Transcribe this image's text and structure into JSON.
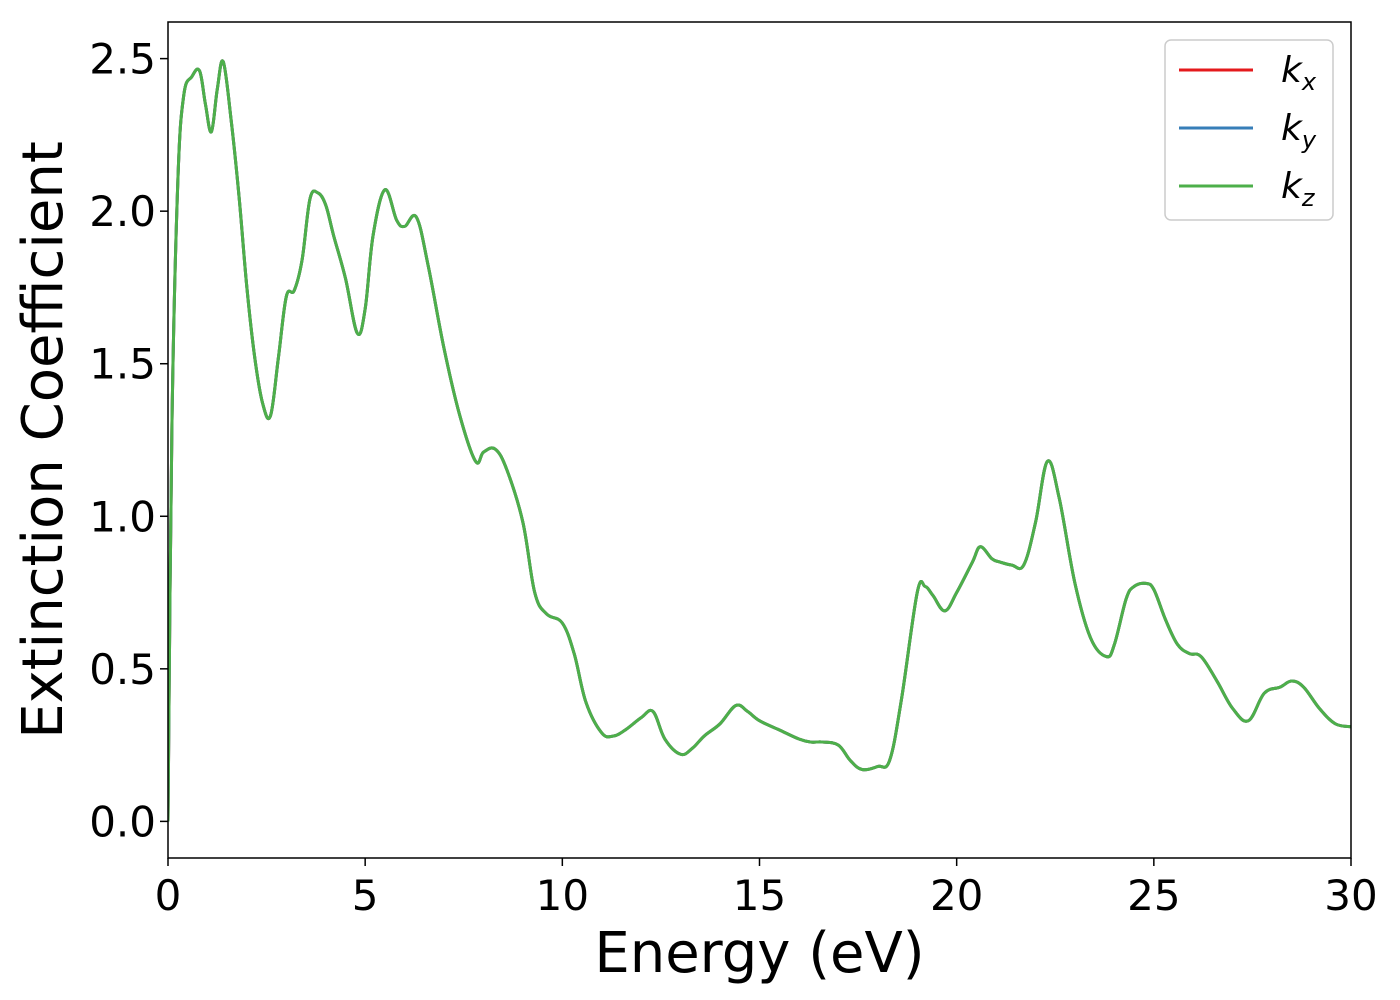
{
  "chart_data": {
    "type": "line",
    "title": "",
    "xlabel": "Energy (eV)",
    "ylabel": "Extinction Coefficient",
    "xlim": [
      0,
      30
    ],
    "ylim": [
      -0.12,
      2.62
    ],
    "xticks": [
      0,
      5,
      10,
      15,
      20,
      25,
      30
    ],
    "xtick_labels": [
      "0",
      "5",
      "10",
      "15",
      "20",
      "25",
      "30"
    ],
    "yticks": [
      0.0,
      0.5,
      1.0,
      1.5,
      2.0,
      2.5
    ],
    "ytick_labels": [
      "0.0",
      "0.5",
      "1.0",
      "1.5",
      "2.0",
      "2.5"
    ],
    "grid": false,
    "legend_position": "top-right",
    "x": [
      0.0,
      0.1,
      0.25,
      0.4,
      0.6,
      0.8,
      0.95,
      1.1,
      1.25,
      1.4,
      1.6,
      1.8,
      2.0,
      2.2,
      2.4,
      2.6,
      2.8,
      3.0,
      3.2,
      3.4,
      3.6,
      3.8,
      4.0,
      4.2,
      4.5,
      4.8,
      5.0,
      5.2,
      5.5,
      5.8,
      6.0,
      6.3,
      6.6,
      7.0,
      7.4,
      7.8,
      8.0,
      8.3,
      8.6,
      9.0,
      9.3,
      9.6,
      10.0,
      10.3,
      10.6,
      11.0,
      11.3,
      11.6,
      12.0,
      12.3,
      12.6,
      13.0,
      13.3,
      13.6,
      14.0,
      14.4,
      14.7,
      15.0,
      15.5,
      16.0,
      16.3,
      16.6,
      17.0,
      17.3,
      17.6,
      18.0,
      18.3,
      18.6,
      19.0,
      19.2,
      19.4,
      19.7,
      20.0,
      20.4,
      20.6,
      20.9,
      21.1,
      21.4,
      21.7,
      22.0,
      22.3,
      22.6,
      23.0,
      23.4,
      23.8,
      24.0,
      24.3,
      24.5,
      24.8,
      25.0,
      25.3,
      25.6,
      25.9,
      26.2,
      26.6,
      27.0,
      27.4,
      27.8,
      28.2,
      28.5,
      28.8,
      29.2,
      29.6,
      30.0
    ],
    "series": [
      {
        "name": "k_x",
        "color": "#e41a1c",
        "values": [
          0.0,
          1.3,
          2.1,
          2.38,
          2.44,
          2.46,
          2.35,
          2.26,
          2.4,
          2.49,
          2.3,
          2.05,
          1.75,
          1.52,
          1.37,
          1.33,
          1.52,
          1.72,
          1.74,
          1.84,
          2.04,
          2.06,
          2.02,
          1.92,
          1.78,
          1.6,
          1.68,
          1.92,
          2.07,
          1.97,
          1.95,
          1.98,
          1.82,
          1.55,
          1.33,
          1.18,
          1.21,
          1.22,
          1.15,
          0.98,
          0.75,
          0.68,
          0.65,
          0.55,
          0.39,
          0.29,
          0.28,
          0.3,
          0.34,
          0.36,
          0.27,
          0.22,
          0.24,
          0.28,
          0.32,
          0.38,
          0.36,
          0.33,
          0.3,
          0.27,
          0.26,
          0.26,
          0.25,
          0.2,
          0.17,
          0.18,
          0.2,
          0.4,
          0.75,
          0.77,
          0.74,
          0.69,
          0.75,
          0.85,
          0.9,
          0.86,
          0.85,
          0.84,
          0.84,
          0.98,
          1.18,
          1.06,
          0.78,
          0.6,
          0.54,
          0.58,
          0.73,
          0.77,
          0.78,
          0.76,
          0.66,
          0.58,
          0.55,
          0.54,
          0.46,
          0.37,
          0.33,
          0.42,
          0.44,
          0.46,
          0.44,
          0.37,
          0.32,
          0.31
        ]
      },
      {
        "name": "k_y",
        "color": "#377eb8",
        "values": [
          0.0,
          1.3,
          2.1,
          2.38,
          2.44,
          2.46,
          2.35,
          2.26,
          2.4,
          2.49,
          2.3,
          2.05,
          1.75,
          1.52,
          1.37,
          1.33,
          1.52,
          1.72,
          1.74,
          1.84,
          2.04,
          2.06,
          2.02,
          1.92,
          1.78,
          1.6,
          1.68,
          1.92,
          2.07,
          1.97,
          1.95,
          1.98,
          1.82,
          1.55,
          1.33,
          1.18,
          1.21,
          1.22,
          1.15,
          0.98,
          0.75,
          0.68,
          0.65,
          0.55,
          0.39,
          0.29,
          0.28,
          0.3,
          0.34,
          0.36,
          0.27,
          0.22,
          0.24,
          0.28,
          0.32,
          0.38,
          0.36,
          0.33,
          0.3,
          0.27,
          0.26,
          0.26,
          0.25,
          0.2,
          0.17,
          0.18,
          0.2,
          0.4,
          0.75,
          0.77,
          0.74,
          0.69,
          0.75,
          0.85,
          0.9,
          0.86,
          0.85,
          0.84,
          0.84,
          0.98,
          1.18,
          1.06,
          0.78,
          0.6,
          0.54,
          0.58,
          0.73,
          0.77,
          0.78,
          0.76,
          0.66,
          0.58,
          0.55,
          0.54,
          0.46,
          0.37,
          0.33,
          0.42,
          0.44,
          0.46,
          0.44,
          0.37,
          0.32,
          0.31
        ]
      },
      {
        "name": "k_z",
        "color": "#4daf4a",
        "values": [
          0.0,
          1.3,
          2.1,
          2.38,
          2.44,
          2.46,
          2.35,
          2.26,
          2.4,
          2.49,
          2.3,
          2.05,
          1.75,
          1.52,
          1.37,
          1.33,
          1.52,
          1.72,
          1.74,
          1.84,
          2.04,
          2.06,
          2.02,
          1.92,
          1.78,
          1.6,
          1.68,
          1.92,
          2.07,
          1.97,
          1.95,
          1.98,
          1.82,
          1.55,
          1.33,
          1.18,
          1.21,
          1.22,
          1.15,
          0.98,
          0.75,
          0.68,
          0.65,
          0.55,
          0.39,
          0.29,
          0.28,
          0.3,
          0.34,
          0.36,
          0.27,
          0.22,
          0.24,
          0.28,
          0.32,
          0.38,
          0.36,
          0.33,
          0.3,
          0.27,
          0.26,
          0.26,
          0.25,
          0.2,
          0.17,
          0.18,
          0.2,
          0.4,
          0.75,
          0.77,
          0.74,
          0.69,
          0.75,
          0.85,
          0.9,
          0.86,
          0.85,
          0.84,
          0.84,
          0.98,
          1.18,
          1.06,
          0.78,
          0.6,
          0.54,
          0.58,
          0.73,
          0.77,
          0.78,
          0.76,
          0.66,
          0.58,
          0.55,
          0.54,
          0.46,
          0.37,
          0.33,
          0.42,
          0.44,
          0.46,
          0.44,
          0.37,
          0.32,
          0.31
        ]
      }
    ],
    "legend": [
      {
        "base": "k",
        "sub": "x"
      },
      {
        "base": "k",
        "sub": "y"
      },
      {
        "base": "k",
        "sub": "z"
      }
    ]
  }
}
